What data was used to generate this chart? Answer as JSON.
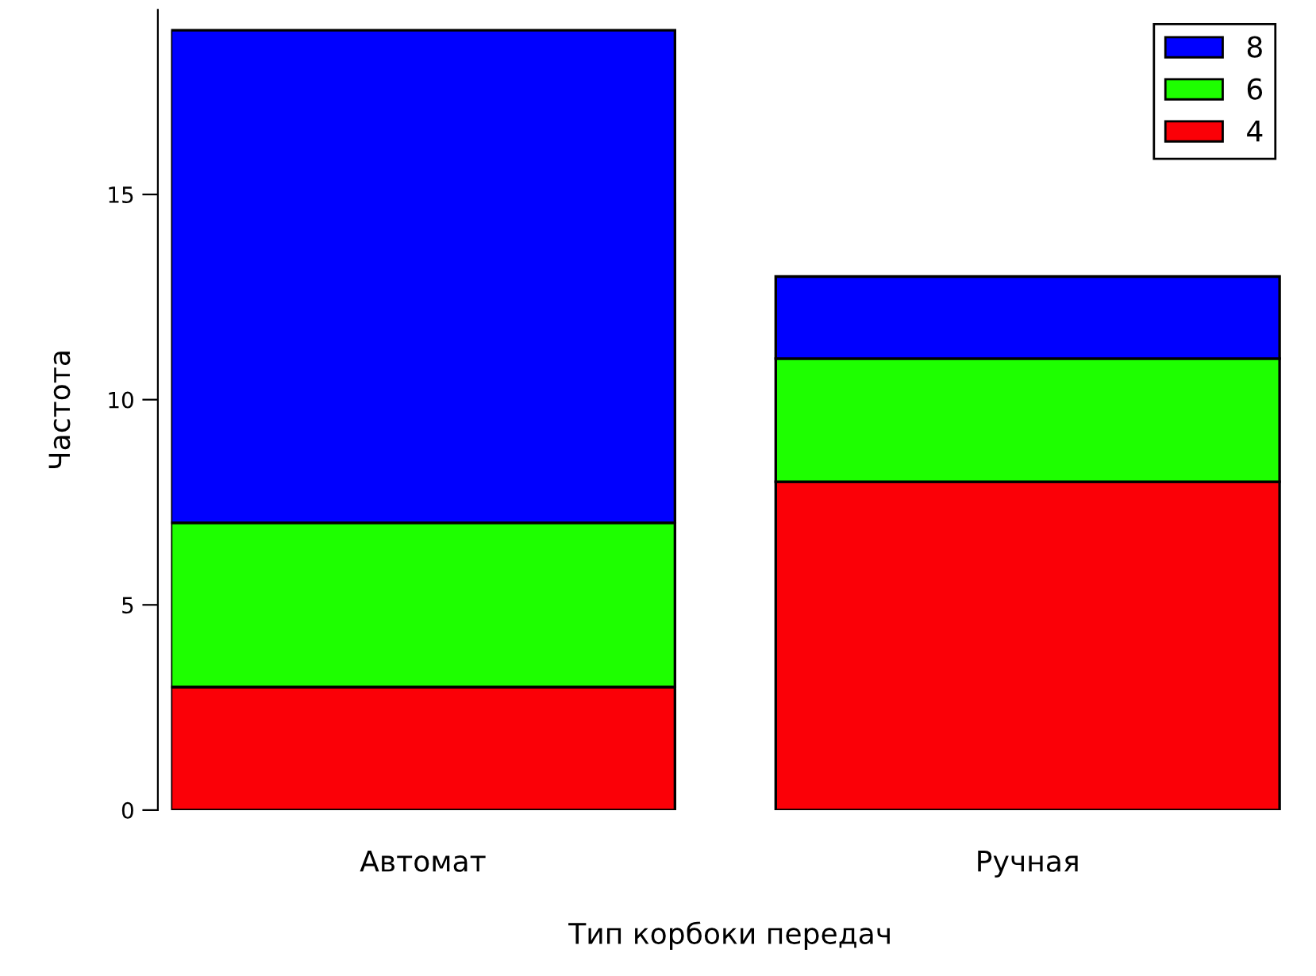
{
  "chart_data": {
    "type": "bar",
    "stacked": true,
    "xlabel": "Тип корбоки передач",
    "ylabel": "Частота",
    "categories": [
      "Автомат",
      "Ручная"
    ],
    "series": [
      {
        "name": "4",
        "color": "#fb0007",
        "values": [
          3,
          8
        ]
      },
      {
        "name": "6",
        "color": "#1eff00",
        "values": [
          4,
          3
        ]
      },
      {
        "name": "8",
        "color": "#0000ff",
        "values": [
          12,
          2
        ]
      }
    ],
    "ylim": [
      0,
      19.5
    ],
    "yticks": [
      0,
      5,
      10,
      15
    ],
    "grid": false,
    "legend": "top right"
  }
}
